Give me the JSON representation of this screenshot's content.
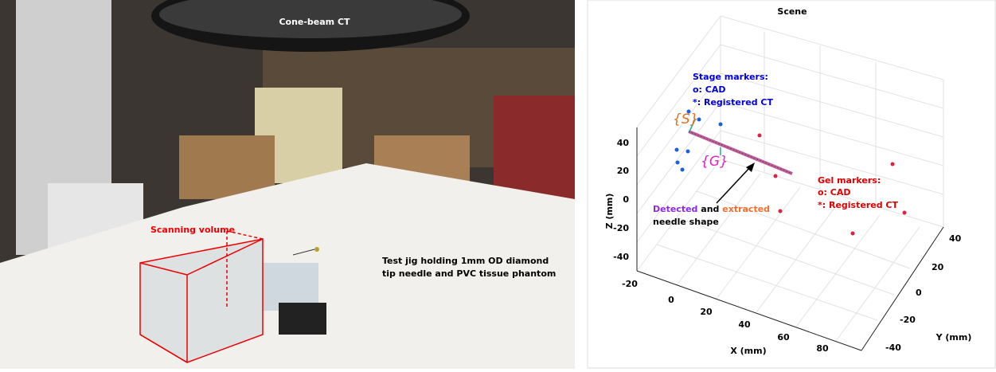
{
  "photo": {
    "labels": {
      "ct": "Cone-beam CT",
      "volume": "Scanning volume",
      "jig": [
        "Test jig holding 1mm OD diamond",
        "tip needle and PVC tissue phantom"
      ]
    }
  },
  "plot": {
    "title": "Scene",
    "z_label": "Z (mm)",
    "x_label": "X (mm)",
    "y_label": "Y (mm)",
    "z_ticks": [
      "40",
      "20",
      "0",
      "-20",
      "-40"
    ],
    "x_ticks": [
      "-20",
      "0",
      "20",
      "40",
      "60",
      "80"
    ],
    "y_ticks": [
      "40",
      "20",
      "0",
      "-20",
      "-40"
    ],
    "stage_markers": [
      "Stage markers:",
      "o: CAD",
      "*: Registered CT"
    ],
    "gel_markers": [
      "Gel markers:",
      "o: CAD",
      "*: Registered CT"
    ],
    "frame_s": "{S}",
    "frame_g": "{G}",
    "needle": {
      "detected": "Detected",
      "and": "and",
      "extracted": "extracted",
      "shape": "needle shape"
    }
  }
}
